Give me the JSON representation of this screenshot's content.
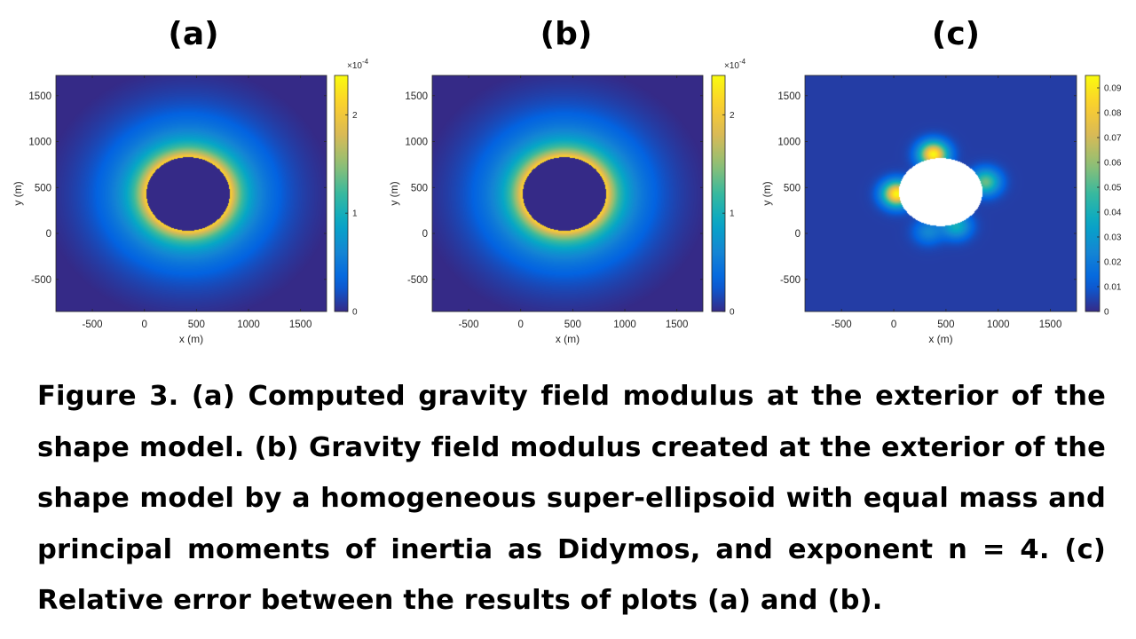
{
  "panel_labels": [
    "(a)",
    "(b)",
    "(c)"
  ],
  "caption": "Figure 3. (a) Computed gravity field modulus at the exterior of the shape model. (b) Gravity field modulus created at the exterior of the shape model by a homogeneous super-ellipsoid with equal mass and principal moments of inertia as Didymos, and exponent n = 4. (c) Relative error between the results of plots (a) and (b).",
  "colors": {
    "parula": [
      "#352a87",
      "#0363e1",
      "#1485d4",
      "#06a7c6",
      "#38b99e",
      "#92bf73",
      "#d9ba56",
      "#fcce2e",
      "#f9fb0e"
    ],
    "mask": "#ffffff"
  },
  "chart_data": [
    {
      "type": "heatmap",
      "title": "(a)",
      "xlabel": "x (m)",
      "ylabel": "y (m)",
      "xlim": [
        -850,
        1750
      ],
      "ylim": [
        -850,
        1720
      ],
      "xticks": [
        -500,
        0,
        500,
        1000,
        1500
      ],
      "xtick_labels": [
        "-500",
        "0",
        "500",
        "1000",
        "1500"
      ],
      "yticks": [
        -500,
        0,
        500,
        1000,
        1500
      ],
      "ytick_labels": [
        "-500",
        "0",
        "500",
        "1000",
        "1500"
      ],
      "colorbar": {
        "range": [
          0,
          0.00024
        ],
        "exponent_label": "×10",
        "exponent": "-4",
        "ticks": [
          0,
          1,
          2
        ],
        "tick_labels": [
          "0",
          "1",
          "2"
        ]
      },
      "body": {
        "center_x": 420,
        "center_y": 430,
        "radius_x": 400,
        "radius_y": 400,
        "interior": "min"
      },
      "field": {
        "peak": 0.00024,
        "falloff": "inverse-square from body surface"
      }
    },
    {
      "type": "heatmap",
      "title": "(b)",
      "xlabel": "x (m)",
      "ylabel": "y (m)",
      "xlim": [
        -850,
        1750
      ],
      "ylim": [
        -850,
        1720
      ],
      "xticks": [
        -500,
        0,
        500,
        1000,
        1500
      ],
      "xtick_labels": [
        "-500",
        "0",
        "500",
        "1000",
        "1500"
      ],
      "yticks": [
        -500,
        0,
        500,
        1000,
        1500
      ],
      "ytick_labels": [
        "-500",
        "0",
        "500",
        "1000",
        "1500"
      ],
      "colorbar": {
        "range": [
          0,
          0.00024
        ],
        "exponent_label": "×10",
        "exponent": "-4",
        "ticks": [
          0,
          1,
          2
        ],
        "tick_labels": [
          "0",
          "1",
          "2"
        ]
      },
      "body": {
        "center_x": 420,
        "center_y": 430,
        "radius_x": 400,
        "radius_y": 400,
        "interior": "min"
      },
      "field": {
        "peak": 0.00024,
        "falloff": "inverse-square from body surface"
      }
    },
    {
      "type": "heatmap",
      "title": "(c)",
      "xlabel": "x (m)",
      "ylabel": "y (m)",
      "xlim": [
        -850,
        1750
      ],
      "ylim": [
        -850,
        1720
      ],
      "xticks": [
        -500,
        0,
        500,
        1000,
        1500
      ],
      "xtick_labels": [
        "-500",
        "0",
        "500",
        "1000",
        "1500"
      ],
      "yticks": [
        -500,
        0,
        500,
        1000,
        1500
      ],
      "ytick_labels": [
        "-500",
        "0",
        "500",
        "1000",
        "1500"
      ],
      "colorbar": {
        "range": [
          0,
          0.095
        ],
        "ticks": [
          0,
          0.01,
          0.02,
          0.03,
          0.04,
          0.05,
          0.06,
          0.07,
          0.08,
          0.09
        ],
        "tick_labels": [
          "0",
          "0.01",
          "0.02",
          "0.03",
          "0.04",
          "0.05",
          "0.06",
          "0.07",
          "0.08",
          "0.09"
        ]
      },
      "body": {
        "center_x": 450,
        "center_y": 450,
        "radius_x": 400,
        "radius_y": 370,
        "interior": "blank"
      },
      "field": {
        "background": 0.004,
        "hotspots": [
          {
            "x": 380,
            "y": 860,
            "value": 0.09
          },
          {
            "x": 30,
            "y": 430,
            "value": 0.09
          },
          {
            "x": 880,
            "y": 560,
            "value": 0.05
          },
          {
            "x": 600,
            "y": 80,
            "value": 0.035
          },
          {
            "x": 330,
            "y": 20,
            "value": 0.02
          }
        ]
      }
    }
  ]
}
